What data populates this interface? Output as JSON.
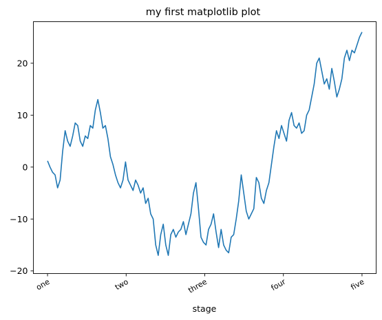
{
  "chart_data": {
    "type": "line",
    "title": "my first matplotlib plot",
    "xlabel": "stage",
    "ylabel": "",
    "xlim": [
      -45,
      1045
    ],
    "ylim": [
      -20.5,
      28.0
    ],
    "x_ticks": [
      0,
      250,
      500,
      750,
      1000
    ],
    "x_tick_labels": [
      "one",
      "two",
      "three",
      "four",
      "five"
    ],
    "y_ticks": [
      -20,
      -10,
      0,
      10,
      20
    ],
    "y_tick_labels": [
      "−20",
      "−10",
      "0",
      "10",
      "20"
    ],
    "grid": false,
    "legend": "none",
    "series_color": "#1f77b4",
    "series": [
      {
        "x": [
          0,
          8,
          16,
          24,
          32,
          40,
          48,
          56,
          64,
          72,
          80,
          88,
          96,
          104,
          112,
          120,
          128,
          136,
          144,
          152,
          160,
          168,
          176,
          184,
          192,
          200,
          208,
          216,
          224,
          232,
          240,
          248,
          256,
          264,
          272,
          280,
          288,
          296,
          304,
          312,
          320,
          328,
          336,
          344,
          352,
          360,
          368,
          376,
          384,
          392,
          400,
          408,
          416,
          424,
          432,
          440,
          448,
          456,
          464,
          472,
          480,
          488,
          496,
          504,
          512,
          520,
          528,
          536,
          544,
          552,
          560,
          568,
          576,
          584,
          592,
          600,
          608,
          616,
          624,
          632,
          640,
          648,
          656,
          664,
          672,
          680,
          688,
          696,
          704,
          712,
          720,
          728,
          736,
          744,
          752,
          760,
          768,
          776,
          784,
          792,
          800,
          808,
          816,
          824,
          832,
          840,
          848,
          856,
          864,
          872,
          880,
          888,
          896,
          904,
          912,
          920,
          928,
          936,
          944,
          952,
          960,
          968,
          976,
          984,
          992,
          1000
        ],
        "values": [
          1.2,
          0.0,
          -1.0,
          -1.5,
          -4.0,
          -2.5,
          3.0,
          7.0,
          5.0,
          4.0,
          6.0,
          8.5,
          8.0,
          5.0,
          4.0,
          6.0,
          5.5,
          8.0,
          7.5,
          11.0,
          13.0,
          10.5,
          7.5,
          8.0,
          5.5,
          2.0,
          0.5,
          -1.5,
          -3.0,
          -4.0,
          -2.5,
          1.0,
          -2.5,
          -3.5,
          -4.5,
          -2.5,
          -3.5,
          -5.0,
          -4.0,
          -7.0,
          -6.0,
          -9.0,
          -10.0,
          -15.0,
          -17.0,
          -13.0,
          -11.0,
          -15.0,
          -17.0,
          -13.0,
          -12.0,
          -13.5,
          -12.5,
          -12.0,
          -10.5,
          -13.0,
          -11.0,
          -9.0,
          -5.0,
          -3.0,
          -8.0,
          -13.5,
          -14.5,
          -15.0,
          -12.0,
          -11.0,
          -9.0,
          -12.5,
          -15.5,
          -12.0,
          -15.0,
          -16.0,
          -16.5,
          -13.5,
          -13.0,
          -10.0,
          -6.5,
          -1.5,
          -5.0,
          -8.5,
          -10.0,
          -9.0,
          -8.0,
          -2.0,
          -3.0,
          -6.0,
          -7.0,
          -4.5,
          -3.0,
          0.5,
          4.0,
          7.0,
          5.5,
          8.0,
          6.5,
          5.0,
          9.0,
          10.5,
          8.0,
          7.5,
          8.5,
          6.5,
          7.0,
          10.0,
          11.0,
          13.5,
          16.0,
          20.0,
          21.0,
          18.5,
          16.0,
          17.0,
          15.0,
          19.0,
          16.5,
          13.5,
          15.0,
          17.0,
          21.0,
          22.5,
          20.5,
          22.5,
          22.0,
          23.5,
          25.0,
          26.0
        ]
      }
    ]
  }
}
